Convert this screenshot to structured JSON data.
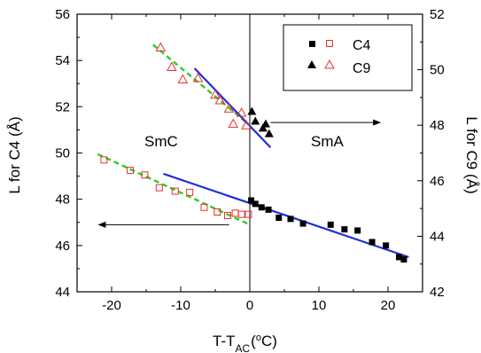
{
  "chart_data": {
    "type": "scatter",
    "xlabel": {
      "main": "T-T",
      "sub": "AC",
      "open": "(",
      "deg": "o",
      "unit": "C)"
    },
    "ylabel_left": "L for C4 (Å)",
    "ylabel_right": "L for C9 (Å)",
    "xlim": [
      -25,
      25
    ],
    "ylim_left": [
      44,
      56
    ],
    "ylim_right": [
      42,
      52
    ],
    "x_ticks": [
      -20,
      -10,
      0,
      10,
      20
    ],
    "y_ticks_left": [
      44,
      46,
      48,
      50,
      52,
      54,
      56
    ],
    "y_ticks_right": [
      42,
      44,
      46,
      48,
      50,
      52
    ],
    "grid": false,
    "legend_position": "top-right",
    "annotations": {
      "smc": "SmC",
      "sma": "SmA",
      "transition_x": 0,
      "arrow_left": {
        "axis": "left",
        "y": 46.9,
        "x_from": -3,
        "x_to": -22
      },
      "arrow_right": {
        "axis": "right",
        "y": 48.1,
        "x_from": 3,
        "x_to": 19
      }
    },
    "series": [
      {
        "name": "C4",
        "axis": "left",
        "marker": "square",
        "fill": "filled",
        "color": "#000000",
        "x": [
          0.2,
          0.8,
          1.7,
          2.7,
          4.2,
          5.9,
          7.7,
          11.7,
          13.7,
          15.6,
          17.7,
          19.7,
          21.6,
          22.3
        ],
        "y": [
          47.95,
          47.8,
          47.65,
          47.55,
          47.2,
          47.15,
          46.95,
          46.9,
          46.7,
          46.65,
          46.15,
          46.0,
          45.5,
          45.4
        ]
      },
      {
        "name": "C4",
        "axis": "left",
        "marker": "square",
        "fill": "open",
        "color": "#e8302a",
        "x": [
          -21.1,
          -17.3,
          -15.2,
          -13.1,
          -10.8,
          -8.7,
          -6.6,
          -4.7,
          -3.2,
          -2.1,
          -1.2,
          -0.2
        ],
        "y": [
          49.7,
          49.25,
          49.05,
          48.5,
          48.35,
          48.3,
          47.65,
          47.45,
          47.3,
          47.4,
          47.35,
          47.35
        ]
      },
      {
        "name": "C9",
        "axis": "right",
        "marker": "triangle",
        "fill": "filled",
        "color": "#000000",
        "x": [
          0.3,
          0.8,
          1.9,
          2.3,
          2.8
        ],
        "y": [
          48.5,
          48.15,
          47.9,
          48.05,
          47.7
        ]
      },
      {
        "name": "C9",
        "axis": "right",
        "marker": "triangle",
        "fill": "open",
        "color": "#e8302a",
        "x": [
          -12.9,
          -11.3,
          -9.7,
          -7.5,
          -5.0,
          -4.3,
          -3.0,
          -1.2,
          -2.4,
          -0.5
        ],
        "y": [
          50.8,
          50.1,
          49.65,
          49.7,
          49.1,
          48.9,
          48.6,
          48.45,
          48.05,
          48.0
        ]
      }
    ],
    "fit_lines": [
      {
        "axis": "left",
        "style": "dashed",
        "color": "#33cc33",
        "x": [
          -22,
          0
        ],
        "y": [
          49.95,
          46.9
        ]
      },
      {
        "axis": "left",
        "style": "solid",
        "color": "#1f2fd6",
        "x": [
          -12.5,
          23
        ],
        "y": [
          49.1,
          45.5
        ]
      },
      {
        "axis": "right",
        "style": "dashed",
        "color": "#33cc33",
        "x": [
          -14,
          0
        ],
        "y": [
          50.9,
          48.0
        ]
      },
      {
        "axis": "right",
        "style": "solid",
        "color": "#1f2fd6",
        "x": [
          -8,
          3
        ],
        "y": [
          50.05,
          47.2
        ]
      }
    ]
  }
}
